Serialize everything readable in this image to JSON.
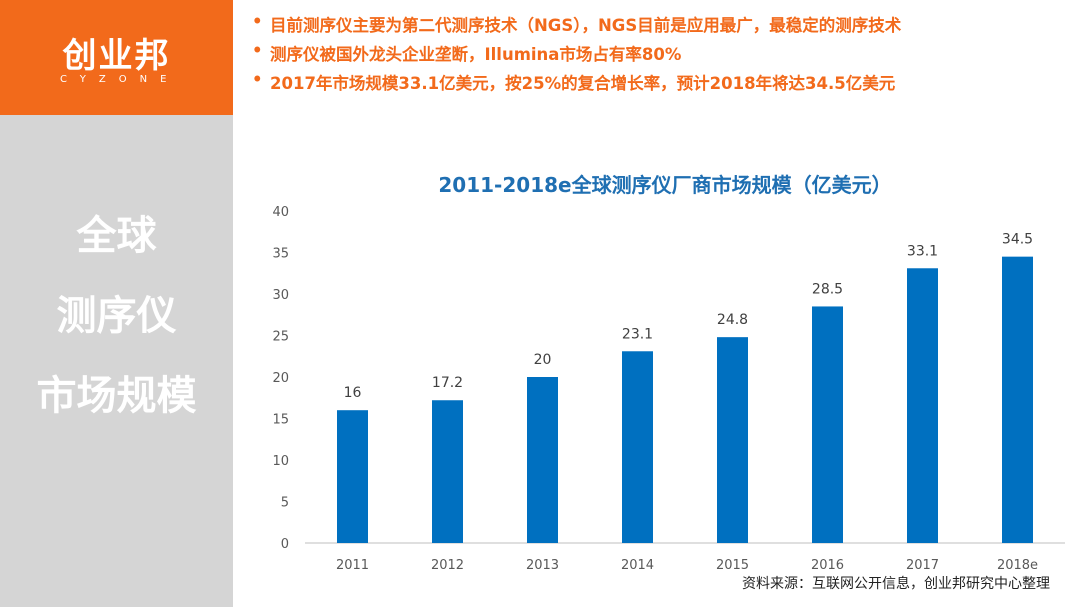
{
  "logo": {
    "name": "创业邦",
    "subtitle": "CYZONE",
    "color": "#f26a1b"
  },
  "side": {
    "title_lines": [
      "全球",
      "测序仪",
      "市场规模"
    ]
  },
  "bullets": [
    "目前测序仪主要为第二代测序技术（NGS），NGS目前是应用最广，最稳定的测序技术",
    "测序仪被国外龙头企业垄断，Illumina市场占有率80%",
    "2017年市场规模33.1亿美元，按25%的复合增长率，预计2018年将达34.5亿美元"
  ],
  "bullet_symbol": "•",
  "source": "资料来源：互联网公开信息，创业邦研究中心整理",
  "chart_data": {
    "type": "bar",
    "title": "2011-2018e全球测序仪厂商市场规模（亿美元）",
    "categories": [
      "2011",
      "2012",
      "2013",
      "2014",
      "2015",
      "2016",
      "2017",
      "2018e"
    ],
    "values": [
      16,
      17.2,
      20,
      23.1,
      24.8,
      28.5,
      33.1,
      34.5
    ],
    "value_labels": [
      "16",
      "17.2",
      "20",
      "23.1",
      "24.8",
      "28.5",
      "33.1",
      "34.5"
    ],
    "ylim": [
      0,
      40
    ],
    "yticks": [
      0,
      5,
      10,
      15,
      20,
      25,
      30,
      35,
      40
    ],
    "grid": false,
    "legend": "none",
    "bar_color": "#0070c0",
    "title_color": "#1f6fb2"
  }
}
